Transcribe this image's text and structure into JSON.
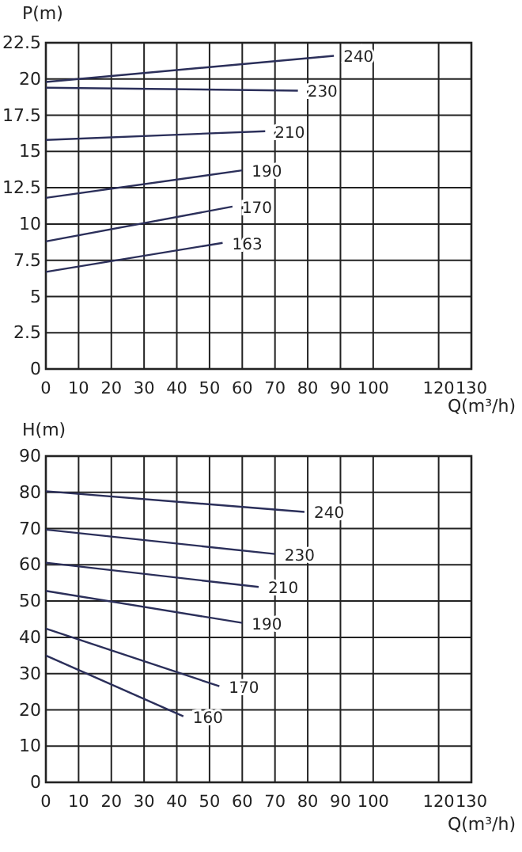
{
  "chart_data": [
    {
      "type": "line",
      "ylabel": "P(m)",
      "xlabel": "Q(m³/h)",
      "xlim": [
        0,
        130
      ],
      "ylim": [
        0,
        22.5
      ],
      "xticks": [
        0,
        10,
        20,
        30,
        40,
        50,
        60,
        70,
        80,
        90,
        100,
        120,
        130
      ],
      "yticks": [
        0,
        2.5,
        5,
        7.5,
        10,
        12.5,
        15,
        17.5,
        20,
        22.5
      ],
      "grid": true,
      "series": [
        {
          "name": "240",
          "color": "#2b2f5a",
          "x": [
            0,
            88
          ],
          "values": [
            19.8,
            21.6
          ]
        },
        {
          "name": "230",
          "color": "#2b2f5a",
          "x": [
            0,
            77
          ],
          "values": [
            19.4,
            19.2
          ]
        },
        {
          "name": "210",
          "color": "#2b2f5a",
          "x": [
            0,
            67
          ],
          "values": [
            15.8,
            16.4
          ]
        },
        {
          "name": "190",
          "color": "#2b2f5a",
          "x": [
            0,
            60
          ],
          "values": [
            11.8,
            13.7
          ]
        },
        {
          "name": "170",
          "color": "#2b2f5a",
          "x": [
            0,
            57
          ],
          "values": [
            8.8,
            11.2
          ]
        },
        {
          "name": "163",
          "color": "#2b2f5a",
          "x": [
            0,
            54
          ],
          "values": [
            6.7,
            8.7
          ]
        }
      ]
    },
    {
      "type": "line",
      "ylabel": "H(m)",
      "xlabel": "Q(m³/h)",
      "xlim": [
        0,
        130
      ],
      "ylim": [
        0,
        90
      ],
      "xticks": [
        0,
        10,
        20,
        30,
        40,
        50,
        60,
        70,
        80,
        90,
        100,
        120,
        130
      ],
      "yticks": [
        0,
        10,
        20,
        30,
        40,
        50,
        60,
        70,
        80,
        90
      ],
      "grid": true,
      "series": [
        {
          "name": "240",
          "color": "#2b2f5a",
          "x": [
            0,
            79
          ],
          "values": [
            80.3,
            74.6
          ]
        },
        {
          "name": "230",
          "color": "#2b2f5a",
          "x": [
            0,
            70
          ],
          "values": [
            69.7,
            63
          ]
        },
        {
          "name": "210",
          "color": "#2b2f5a",
          "x": [
            0,
            65
          ],
          "values": [
            60.6,
            53.9
          ]
        },
        {
          "name": "190",
          "color": "#2b2f5a",
          "x": [
            0,
            60
          ],
          "values": [
            52.8,
            44
          ]
        },
        {
          "name": "170",
          "color": "#2b2f5a",
          "x": [
            0,
            53
          ],
          "values": [
            42.4,
            26.5
          ]
        },
        {
          "name": "160",
          "color": "#2b2f5a",
          "x": [
            0,
            42
          ],
          "values": [
            35,
            18.2
          ]
        }
      ]
    }
  ]
}
